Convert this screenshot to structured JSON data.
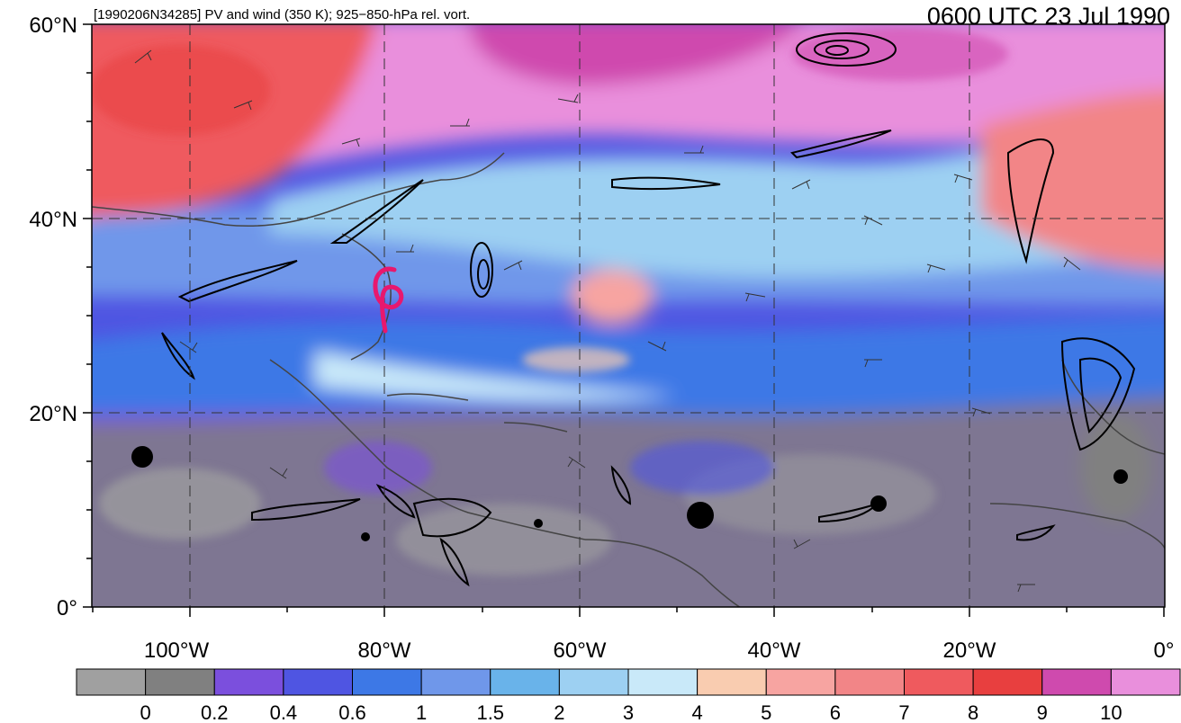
{
  "header": {
    "left_title": "[1990206N34285] PV and wind (350 K); 925−850-hPa rel. vort.",
    "right_title": "0600 UTC 23 Jul 1990"
  },
  "axes": {
    "lat_labels": [
      "60°N",
      "40°N",
      "20°N",
      "0°"
    ],
    "lon_labels": [
      "100°W",
      "80°W",
      "60°W",
      "40°W",
      "20°W",
      "0°"
    ]
  },
  "storm": {
    "symbol_name": "tropical-storm-symbol",
    "color": "#e8186e"
  },
  "colorbar": {
    "colors": [
      "#a0a0a0",
      "#808080",
      "#7b4fdd",
      "#4f55e2",
      "#3d78e6",
      "#6f97ea",
      "#69b3ea",
      "#9dd0f2",
      "#c9e9f9",
      "#f9ccb0",
      "#f7a4a1",
      "#f28587",
      "#ef5a5e",
      "#e83f3f",
      "#cf4aae",
      "#e98fdc"
    ],
    "labels": [
      "0",
      "0.2",
      "0.4",
      "0.6",
      "1",
      "1.5",
      "2",
      "3",
      "4",
      "5",
      "6",
      "7",
      "8",
      "9",
      "10"
    ]
  }
}
